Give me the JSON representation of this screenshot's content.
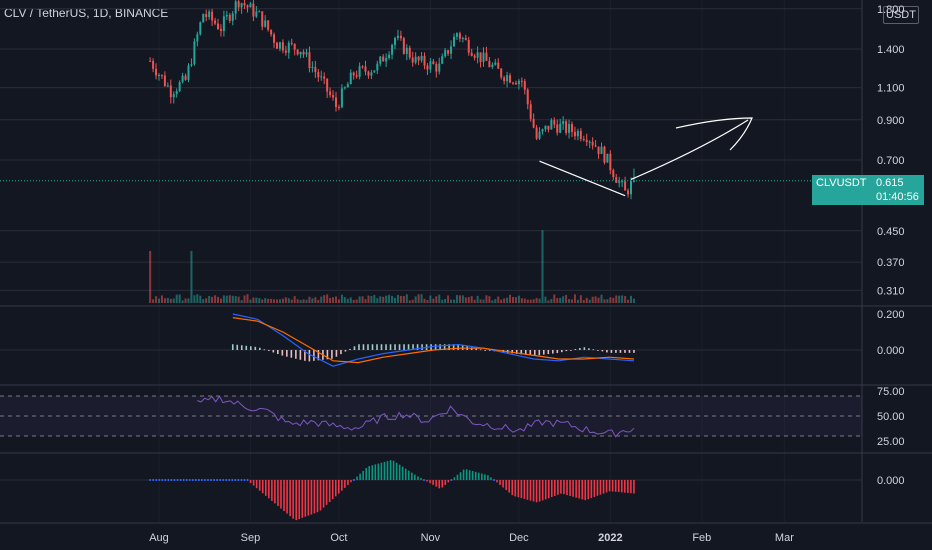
{
  "header": {
    "title": "CLV / TetherUS, 1D, BINANCE"
  },
  "unit_button": "USDT",
  "price_tag": {
    "symbol": "CLVUSDT",
    "price": "0.615",
    "countdown": "01:40:56"
  },
  "colors": {
    "background": "#131722",
    "grid": "#2a2e39",
    "up": "#26a69a",
    "down": "#ef5350",
    "text": "#d1d4dc",
    "macd_line": "#2962ff",
    "signal_line": "#ff6d00",
    "rsi_line": "#7e57c2",
    "osc_up": "#089981",
    "osc_down": "#f23645",
    "osc_neutral": "#2962ff"
  },
  "chart_data": [
    {
      "type": "candlestick",
      "title": "CLV / TetherUS, 1D, BINANCE",
      "scale": "log",
      "y_ticks": [
        "1.800",
        "1.400",
        "1.100",
        "0.900",
        "0.700",
        "0.450",
        "0.370",
        "0.310"
      ],
      "x_ticks": [
        "Aug",
        "Sep",
        "Oct",
        "Nov",
        "Dec",
        "2022",
        "Feb",
        "Mar"
      ],
      "last_price": 0.615,
      "anchors": [
        {
          "date": "2021-07-29",
          "close": 1.3
        },
        {
          "date": "2021-08-05",
          "close": 1.08
        },
        {
          "date": "2021-08-10",
          "close": 1.15
        },
        {
          "date": "2021-08-16",
          "close": 1.75
        },
        {
          "date": "2021-08-22",
          "close": 1.6
        },
        {
          "date": "2021-08-28",
          "close": 1.9
        },
        {
          "date": "2021-09-04",
          "close": 1.72
        },
        {
          "date": "2021-09-10",
          "close": 1.45
        },
        {
          "date": "2021-09-18",
          "close": 1.4
        },
        {
          "date": "2021-09-25",
          "close": 1.15
        },
        {
          "date": "2021-09-30",
          "close": 0.98
        },
        {
          "date": "2021-10-06",
          "close": 1.2
        },
        {
          "date": "2021-10-14",
          "close": 1.25
        },
        {
          "date": "2021-10-20",
          "close": 1.5
        },
        {
          "date": "2021-10-27",
          "close": 1.3
        },
        {
          "date": "2021-11-04",
          "close": 1.25
        },
        {
          "date": "2021-11-10",
          "close": 1.55
        },
        {
          "date": "2021-11-17",
          "close": 1.35
        },
        {
          "date": "2021-11-25",
          "close": 1.2
        },
        {
          "date": "2021-12-02",
          "close": 1.15
        },
        {
          "date": "2021-12-07",
          "close": 0.8
        },
        {
          "date": "2021-12-12",
          "close": 0.88
        },
        {
          "date": "2021-12-17",
          "close": 0.85
        },
        {
          "date": "2021-12-24",
          "close": 0.82
        },
        {
          "date": "2021-12-30",
          "close": 0.72
        },
        {
          "date": "2022-01-06",
          "close": 0.57
        },
        {
          "date": "2022-01-09",
          "close": 0.615
        }
      ],
      "volume_spikes": [
        {
          "date": "2021-07-29",
          "volume": 1.0
        },
        {
          "date": "2021-08-12",
          "volume": 1.0
        },
        {
          "date": "2021-12-09",
          "volume": 1.4
        }
      ]
    },
    {
      "type": "line",
      "title": "MACD",
      "y_ticks": [
        "0.200",
        "0.000"
      ],
      "series": [
        {
          "values": [
            0.2,
            0.17,
            0.08,
            -0.02,
            -0.09,
            -0.05,
            -0.02,
            0.0,
            0.02,
            0.03,
            0.01,
            -0.02,
            -0.05,
            -0.06,
            -0.04,
            -0.05,
            -0.06
          ]
        },
        {
          "values": [
            0.18,
            0.16,
            0.1,
            0.02,
            -0.06,
            -0.07,
            -0.04,
            -0.02,
            0.0,
            0.01,
            0.01,
            -0.01,
            -0.03,
            -0.05,
            -0.05,
            -0.04,
            -0.05
          ]
        }
      ]
    },
    {
      "type": "line",
      "title": "RSI",
      "y_ticks": [
        "75.00",
        "50.00",
        "25.00"
      ],
      "band": [
        30,
        70
      ],
      "values": [
        62,
        68,
        60,
        55,
        42,
        44,
        40,
        38,
        48,
        52,
        45,
        58,
        44,
        40,
        35,
        44,
        42,
        36,
        32,
        38
      ]
    },
    {
      "type": "bar",
      "title": "Oscillator",
      "y_ticks": [
        "0.000"
      ],
      "values": [
        0,
        0,
        0,
        0,
        0,
        -0.45,
        -0.9,
        -0.7,
        -0.2,
        0.3,
        0.45,
        0.1,
        -0.2,
        0.25,
        0.1,
        -0.35,
        -0.5,
        -0.3,
        -0.45,
        -0.25,
        -0.3
      ]
    }
  ]
}
